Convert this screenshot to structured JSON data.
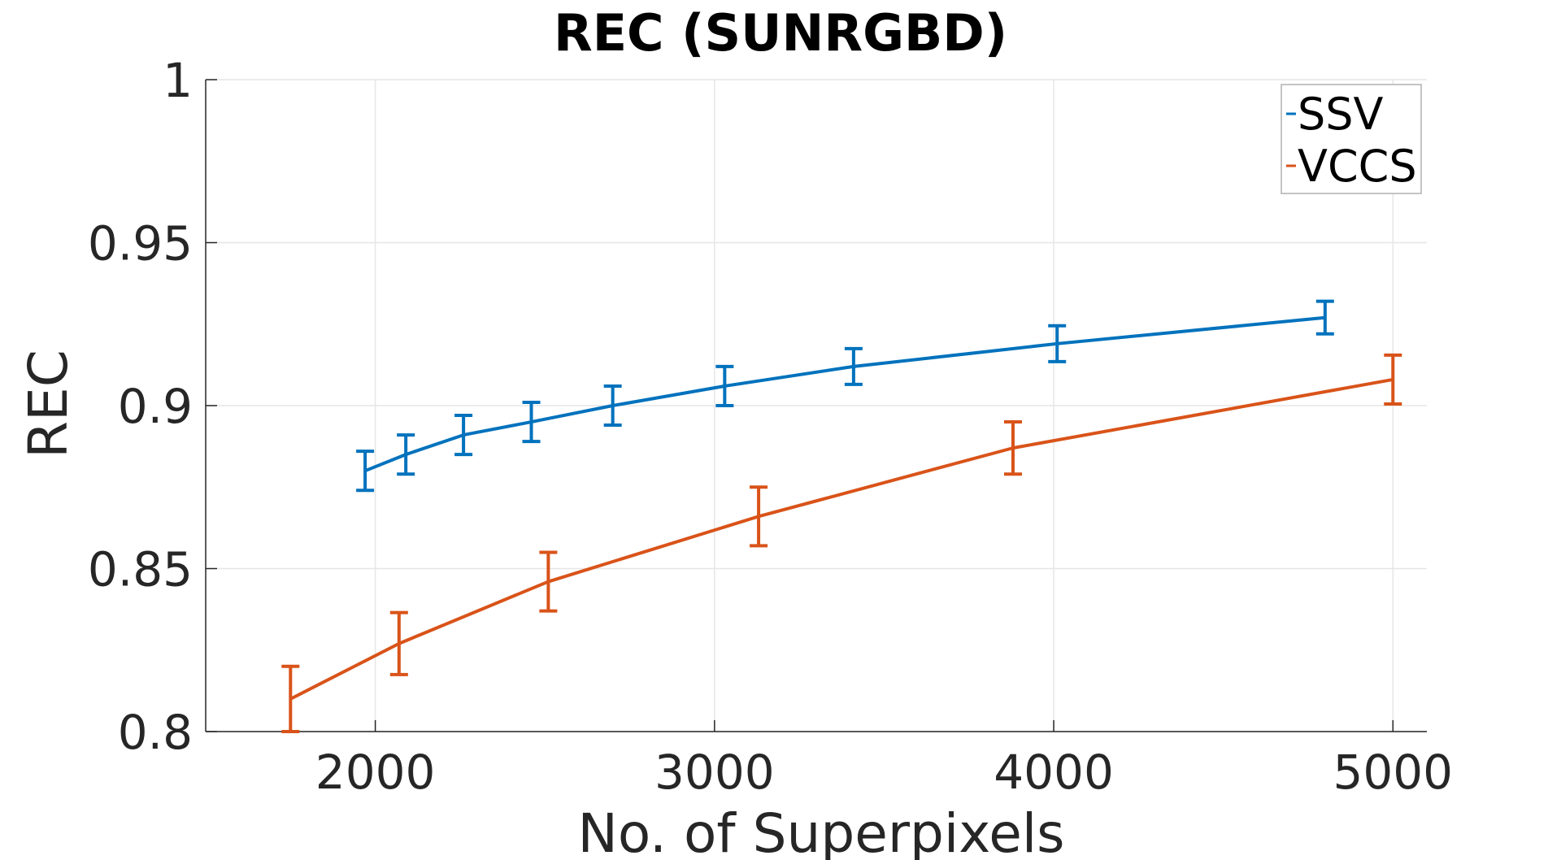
{
  "chart_data": {
    "type": "line",
    "title": "REC (SUNRGBD)",
    "xlabel": "No. of Superpixels",
    "ylabel": "REC",
    "xlim": [
      1500,
      5100
    ],
    "ylim": [
      0.8,
      1.0
    ],
    "xticks": [
      2000,
      3000,
      4000,
      5000
    ],
    "xtick_labels": [
      "2000",
      "3000",
      "4000",
      "5000"
    ],
    "yticks": [
      0.8,
      0.85,
      0.9,
      0.95,
      1.0
    ],
    "ytick_labels": [
      "0.8",
      "0.85",
      "0.9",
      "0.95",
      "1"
    ],
    "grid": true,
    "legend_position": "top-right",
    "series": [
      {
        "name": "SSV",
        "color": "#0072BD",
        "x": [
          1970,
          2090,
          2260,
          2460,
          2700,
          3030,
          3410,
          4010,
          4800
        ],
        "y": [
          0.88,
          0.885,
          0.891,
          0.895,
          0.9,
          0.906,
          0.912,
          0.919,
          0.927
        ],
        "err": [
          0.006,
          0.006,
          0.006,
          0.006,
          0.006,
          0.006,
          0.0055,
          0.0055,
          0.005
        ]
      },
      {
        "name": "VCCS",
        "color": "#D95319",
        "x": [
          1750,
          2070,
          2510,
          3130,
          3880,
          5000
        ],
        "y": [
          0.81,
          0.827,
          0.846,
          0.866,
          0.887,
          0.908
        ],
        "err": [
          0.01,
          0.0095,
          0.009,
          0.009,
          0.008,
          0.0075
        ]
      }
    ]
  }
}
